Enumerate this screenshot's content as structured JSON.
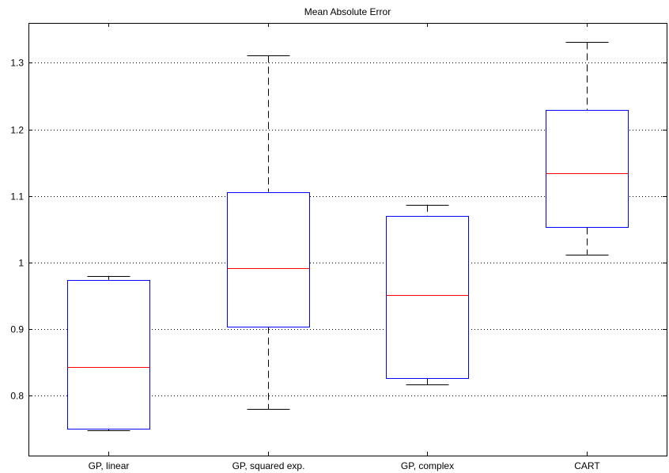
{
  "chart_data": {
    "type": "boxplot",
    "title": "Mean Absolute Error",
    "xlabel": "",
    "ylabel": "",
    "ylim": [
      0.71,
      1.36
    ],
    "yticks": [
      0.8,
      0.9,
      1.0,
      1.1,
      1.2,
      1.3
    ],
    "ytick_labels": [
      "0.8",
      "0.9",
      "1",
      "1.1",
      "1.2",
      "1.3"
    ],
    "grid": "horizontal dotted",
    "categories": [
      "GP, linear",
      "GP, squared exp.",
      "GP, complex",
      "CART"
    ],
    "boxes": [
      {
        "category": "GP, linear",
        "whisker_low": 0.748,
        "q1": 0.751,
        "median": 0.843,
        "q3": 0.974,
        "whisker_high": 0.98
      },
      {
        "category": "GP, squared exp.",
        "whisker_low": 0.78,
        "q1": 0.904,
        "median": 0.992,
        "q3": 1.106,
        "whisker_high": 1.311
      },
      {
        "category": "GP, complex",
        "whisker_low": 0.817,
        "q1": 0.826,
        "median": 0.951,
        "q3": 1.07,
        "whisker_high": 1.087
      },
      {
        "category": "CART",
        "whisker_low": 1.012,
        "q1": 1.053,
        "median": 1.134,
        "q3": 1.229,
        "whisker_high": 1.331
      }
    ],
    "colors": {
      "box": "#0000ff",
      "median": "#ff0000",
      "whisker": "#000000",
      "grid": "#000000"
    }
  }
}
